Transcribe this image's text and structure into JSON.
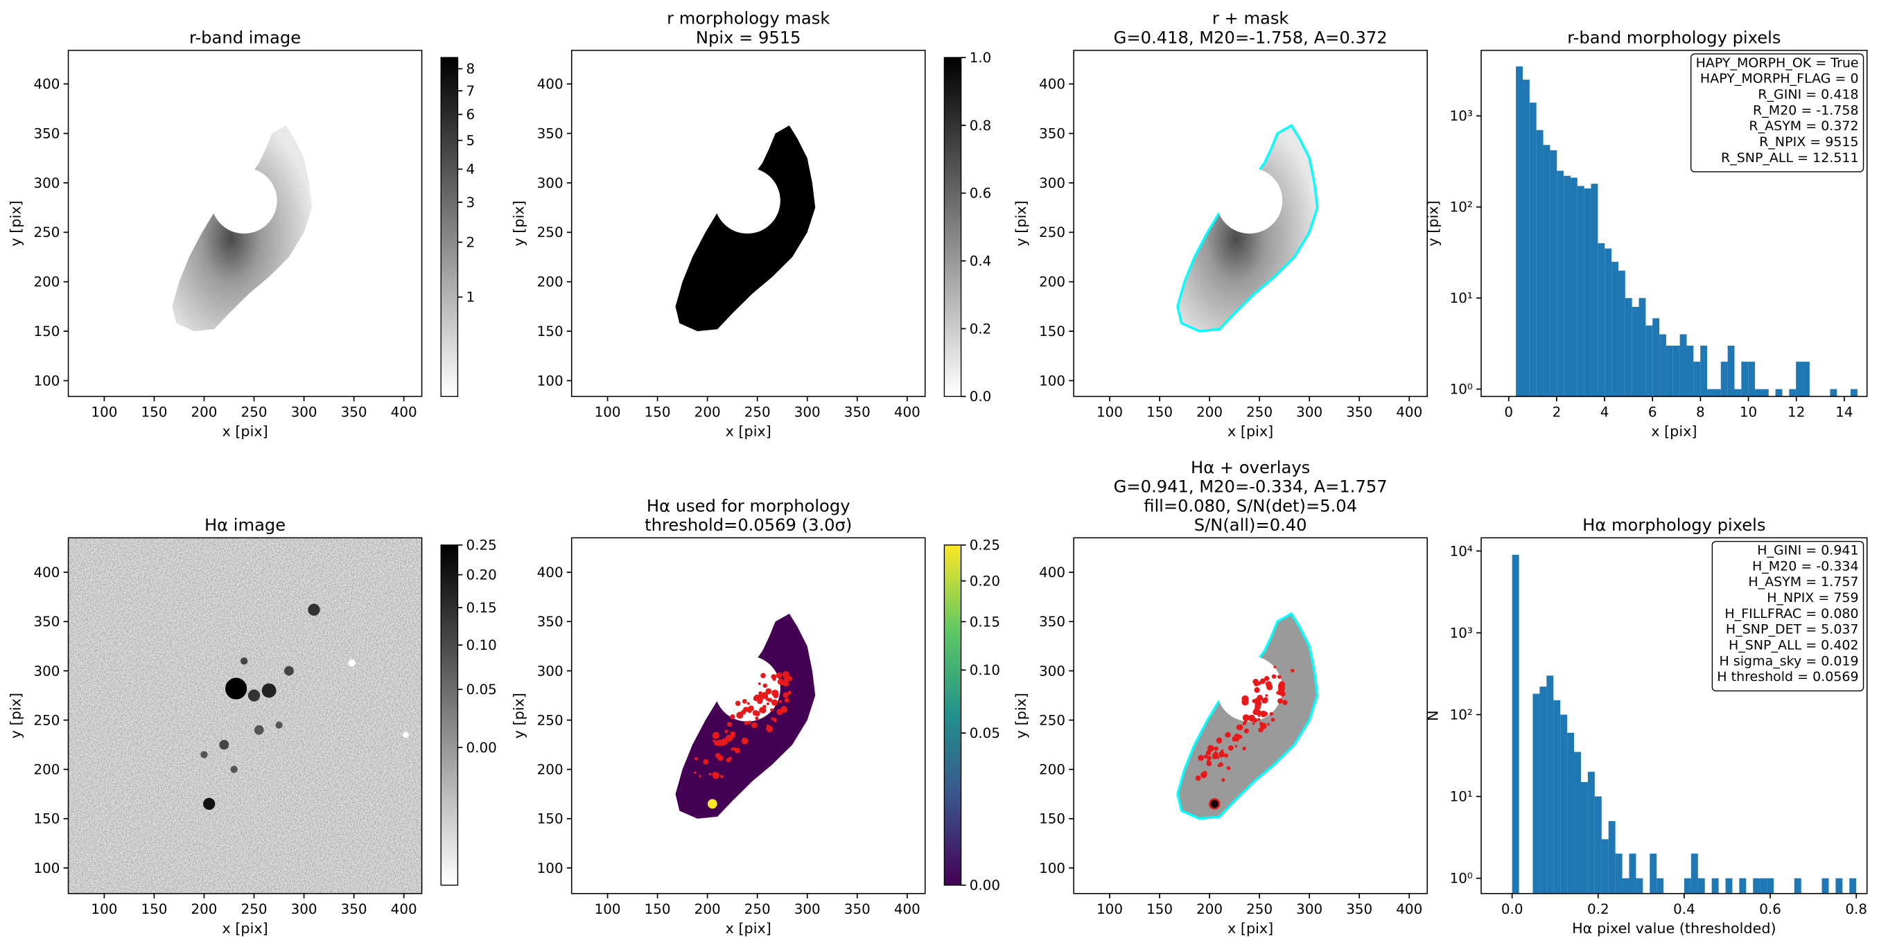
{
  "chart_data": [
    {
      "type": "image",
      "title": [
        "r-band image"
      ],
      "xlabel": "x [pix]",
      "ylabel": "y [pix]",
      "xlim": [
        64,
        418
      ],
      "ylim": [
        84,
        434
      ],
      "xticks": [
        100,
        150,
        200,
        250,
        300,
        350,
        400
      ],
      "yticks": [
        100,
        150,
        200,
        250,
        300,
        350,
        400
      ],
      "colorbar": {
        "scale": "sqrt",
        "lim": [
          0.29,
          8.54
        ],
        "ticks": [
          1,
          2,
          3,
          4,
          5,
          6,
          7,
          8
        ],
        "colors": [
          "#ffffff",
          "#000000"
        ]
      }
    },
    {
      "type": "image",
      "title": [
        "r morphology mask",
        "Npix = 9515"
      ],
      "xlabel": "x [pix]",
      "ylabel": "y [pix]",
      "xlim": [
        64,
        418
      ],
      "ylim": [
        84,
        434
      ],
      "xticks": [
        100,
        150,
        200,
        250,
        300,
        350,
        400
      ],
      "yticks": [
        100,
        150,
        200,
        250,
        300,
        350,
        400
      ],
      "colorbar": {
        "scale": "linear",
        "lim": [
          0,
          1
        ],
        "ticks": [
          {
            "value": 0,
            "label": "0.0"
          },
          0.2,
          0.4,
          0.6,
          0.8,
          {
            "value": 1,
            "label": "1.0"
          }
        ],
        "colors": [
          "#ffffff",
          "#000000"
        ]
      }
    },
    {
      "type": "image",
      "title": [
        "r + mask",
        "G=0.418, M20=-1.758, A=0.372"
      ],
      "xlabel": "x [pix]",
      "ylabel": "y [pix]",
      "xlim": [
        64,
        418
      ],
      "ylim": [
        84,
        434
      ],
      "xticks": [
        100,
        150,
        200,
        250,
        300,
        350,
        400
      ],
      "yticks": [
        100,
        150,
        200,
        250,
        300,
        350,
        400
      ]
    },
    {
      "type": "histogram",
      "title": [
        "r-band morphology pixels"
      ],
      "xlabel": "x [pix]",
      "ylabel": "y [pix]",
      "color": "#1f77b4",
      "ylog": true,
      "xlim": [
        -1.15,
        14.95
      ],
      "ylim": [
        0.83,
        5250
      ],
      "xticks": [
        0,
        2,
        4,
        6,
        8,
        10,
        12,
        14
      ],
      "yticks": [
        {
          "value": 1,
          "label": "10⁰"
        },
        {
          "value": 10,
          "label": "10¹"
        },
        {
          "value": 100,
          "label": "10²"
        },
        {
          "value": 1000,
          "label": "10³"
        }
      ],
      "bins": [
        0.3,
        0.585,
        0.87,
        1.155,
        1.44,
        1.725,
        2.01,
        2.295,
        2.58,
        2.865,
        3.15,
        3.435,
        3.72,
        4.005,
        4.29,
        4.575,
        4.86,
        5.145,
        5.43,
        5.715,
        6.0,
        6.285,
        6.57,
        6.855,
        7.14,
        7.425,
        7.71,
        7.995,
        8.28,
        8.565,
        8.85,
        9.135,
        9.42,
        9.705,
        9.99,
        10.275,
        10.56,
        10.845,
        11.13,
        11.415,
        11.7,
        11.985,
        12.27,
        12.555,
        12.84,
        13.125,
        13.41,
        13.695,
        13.98,
        14.265,
        14.55
      ],
      "values": [
        3500,
        2500,
        1400,
        700,
        480,
        420,
        250,
        220,
        210,
        170,
        160,
        180,
        40,
        35,
        25,
        20,
        10,
        8,
        10,
        5,
        6,
        4,
        3,
        3,
        4,
        3,
        2,
        3,
        1,
        1,
        2,
        3,
        1,
        2,
        2,
        1,
        1,
        0,
        1,
        0,
        1,
        2,
        2,
        0,
        0,
        0,
        1,
        0,
        0,
        1
      ],
      "legend": "upper right",
      "info": [
        "HAPY_MORPH_OK = True",
        "HAPY_MORPH_FLAG = 0",
        "R_GINI = 0.418",
        "R_M20 = -1.758",
        "R_ASYM = 0.372",
        "R_NPIX = 9515",
        "R_SNP_ALL = 12.511"
      ]
    },
    {
      "type": "image",
      "title": [
        "Hα image"
      ],
      "xlabel": "x [pix]",
      "ylabel": "y [pix]",
      "xlim": [
        64,
        418
      ],
      "ylim": [
        74,
        435
      ],
      "xticks": [
        100,
        150,
        200,
        250,
        300,
        350,
        400
      ],
      "yticks": [
        100,
        150,
        200,
        250,
        300,
        350,
        400
      ],
      "colorbar": {
        "scale": "sqrt",
        "lim": [
          -0.049,
          0.25
        ],
        "ticks": [
          {
            "value": 0,
            "label": "0.00"
          },
          0.05,
          {
            "value": 0.1,
            "label": "0.10"
          },
          0.15,
          {
            "value": 0.2,
            "label": "0.20"
          },
          0.25
        ],
        "colors": [
          "#ffffff",
          "#000000"
        ]
      }
    },
    {
      "type": "image",
      "title": [
        "Hα used for morphology",
        "threshold=0.0569 (3.0σ)"
      ],
      "xlabel": "x [pix]",
      "ylabel": "y [pix]",
      "xlim": [
        64,
        418
      ],
      "ylim": [
        74,
        435
      ],
      "xticks": [
        100,
        150,
        200,
        250,
        300,
        350,
        400
      ],
      "yticks": [
        100,
        150,
        200,
        250,
        300,
        350,
        400
      ],
      "colorbar": {
        "scale": "sqrt",
        "lim": [
          0,
          0.25
        ],
        "ticks": [
          {
            "value": 0,
            "label": "0.00"
          },
          0.05,
          {
            "value": 0.1,
            "label": "0.10"
          },
          0.15,
          {
            "value": 0.2,
            "label": "0.20"
          },
          0.25
        ],
        "colors": [
          "#440154",
          "#3b528b",
          "#21918c",
          "#5ec962",
          "#fde725"
        ]
      }
    },
    {
      "type": "image",
      "title": [
        "Hα + overlays",
        "G=0.941, M20=-0.334, A=1.757",
        "fill=0.080, S/N(det)=5.04",
        "S/N(all)=0.40"
      ],
      "xlabel": "x [pix]",
      "ylabel": "y [pix]",
      "xlim": [
        64,
        418
      ],
      "ylim": [
        74,
        435
      ],
      "xticks": [
        100,
        150,
        200,
        250,
        300,
        350,
        400
      ],
      "yticks": [
        100,
        150,
        200,
        250,
        300,
        350,
        400
      ]
    },
    {
      "type": "histogram",
      "title": [
        "Hα morphology pixels"
      ],
      "xlabel": "Hα pixel value (thresholded)",
      "ylabel": "N",
      "color": "#1f77b4",
      "ylog": true,
      "xlim": [
        -0.072,
        0.825
      ],
      "ylim": [
        0.65,
        14500
      ],
      "xticks": [
        {
          "value": 0,
          "label": "0.0"
        },
        0.2,
        0.4,
        0.6,
        0.8
      ],
      "yticks": [
        {
          "value": 1,
          "label": "10⁰"
        },
        {
          "value": 10,
          "label": "10¹"
        },
        {
          "value": 100,
          "label": "10²"
        },
        {
          "value": 1000,
          "label": "10³"
        },
        {
          "value": 10000,
          "label": "10⁴"
        }
      ],
      "bins": [
        0,
        0.016,
        0.032,
        0.048,
        0.064,
        0.08,
        0.096,
        0.112,
        0.128,
        0.144,
        0.16,
        0.176,
        0.192,
        0.208,
        0.224,
        0.24,
        0.256,
        0.272,
        0.288,
        0.304,
        0.32,
        0.336,
        0.352,
        0.368,
        0.384,
        0.4,
        0.416,
        0.432,
        0.448,
        0.464,
        0.48,
        0.496,
        0.512,
        0.528,
        0.544,
        0.56,
        0.576,
        0.592,
        0.608,
        0.624,
        0.64,
        0.656,
        0.672,
        0.688,
        0.704,
        0.72,
        0.736,
        0.752,
        0.768,
        0.784,
        0.8
      ],
      "values": [
        9000,
        0,
        0,
        180,
        220,
        300,
        150,
        100,
        60,
        35,
        15,
        20,
        10,
        3,
        5,
        2,
        1,
        2,
        1,
        0,
        2,
        1,
        0,
        0,
        0,
        1,
        2,
        1,
        0,
        1,
        0,
        1,
        0,
        1,
        0,
        1,
        1,
        1,
        0,
        0,
        0,
        1,
        0,
        0,
        0,
        1,
        0,
        1,
        0,
        1
      ],
      "legend": "upper right",
      "info": [
        "H_GINI = 0.941",
        "H_M20 = -0.334",
        "H_ASYM = 1.757",
        "H_NPIX = 759",
        "H_FILLFRAC = 0.080",
        "H_SNP_DET = 5.037",
        "H_SNP_ALL = 0.402",
        "H sigma_sky = 0.019",
        "H threshold = 0.0569"
      ]
    }
  ]
}
